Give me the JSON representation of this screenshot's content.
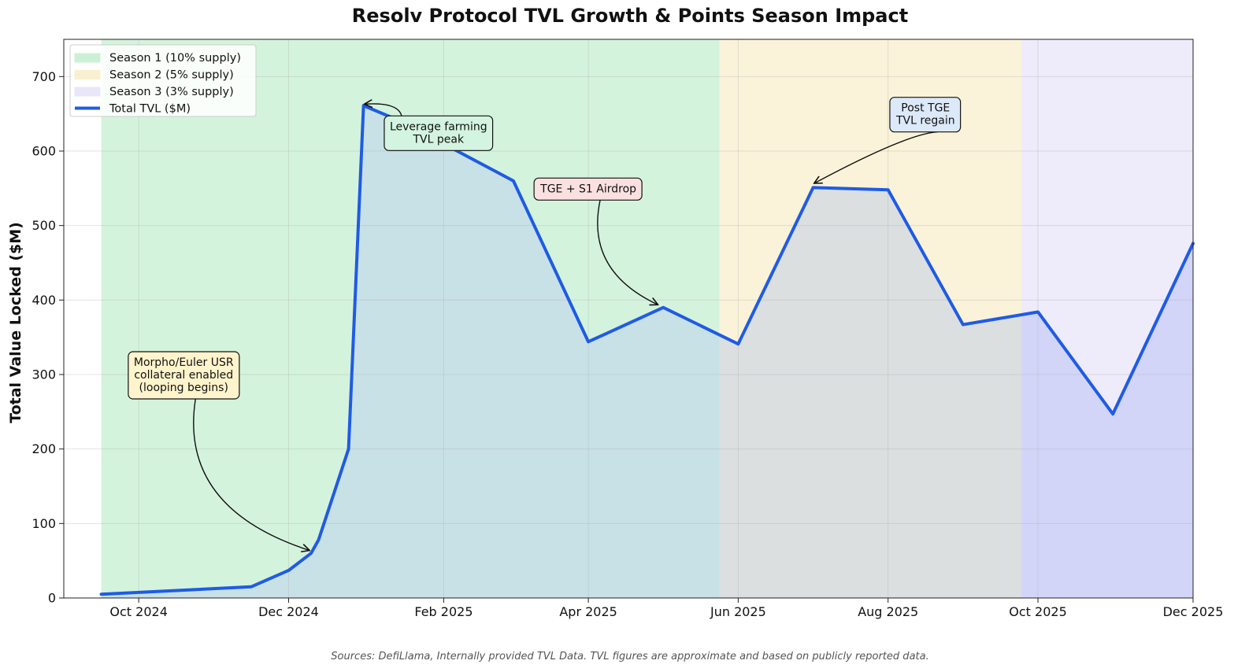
{
  "chart_data": {
    "type": "line",
    "title": "Resolv Protocol TVL Growth & Points Season Impact",
    "xlabel": "",
    "ylabel": "Total Value Locked ($M)",
    "ylim": [
      0,
      750
    ],
    "yticks": [
      0,
      100,
      200,
      300,
      400,
      500,
      600,
      700
    ],
    "xlim": [
      -0.5,
      14.57
    ],
    "xticks": [
      {
        "v": 0.5,
        "label": "Oct 2024"
      },
      {
        "v": 2.5,
        "label": "Dec 2024"
      },
      {
        "v": 4.57,
        "label": "Feb 2025"
      },
      {
        "v": 6.5,
        "label": "Apr 2025"
      },
      {
        "v": 8.5,
        "label": "Jun 2025"
      },
      {
        "v": 10.5,
        "label": "Aug 2025"
      },
      {
        "v": 12.5,
        "label": "Oct 2025"
      },
      {
        "v": 14.57,
        "label": "Dec 2025"
      }
    ],
    "grid": true,
    "series": [
      {
        "name": "Total TVL ($M)",
        "color": "#1f5be5",
        "x": [
          0,
          2,
          2.5,
          2.8,
          2.9,
          3.3,
          3.5,
          4.0,
          5.5,
          6.5,
          7.5,
          8.5,
          9.5,
          10.5,
          11.5,
          12.5,
          13.5,
          14.57
        ],
        "values": [
          5,
          15,
          37,
          60,
          78,
          200,
          661,
          640,
          560,
          344,
          390,
          341,
          551,
          548,
          367,
          384,
          247,
          476
        ]
      }
    ],
    "seasons": [
      {
        "name": "Season 1 (10% supply)",
        "start": 0,
        "end": 8.25,
        "color": "#c6efd2",
        "fill_under": "#c7dfe6"
      },
      {
        "name": "Season 2 (5% supply)",
        "start": 8.25,
        "end": 12.28,
        "color": "#f8efcc",
        "fill_under": "#d9dde0"
      },
      {
        "name": "Season 3 (3% supply)",
        "start": 12.28,
        "end": 14.57,
        "color": "#e8e4f9",
        "fill_under": "#d0d4f8"
      }
    ],
    "legend_position": "top-left",
    "annotations": [
      {
        "id": "morpho",
        "lines": [
          "Morpho/Euler USR",
          "collateral enabled",
          "(looping begins)"
        ],
        "box_color": "#fff4cc",
        "target": [
          2.75,
          62
        ],
        "text_at": [
          1.1,
          300
        ]
      },
      {
        "id": "leverage",
        "lines": [
          "Leverage farming",
          "TVL peak"
        ],
        "box_color": "#d3f4e0",
        "target": [
          3.5,
          661
        ],
        "text_at": [
          4.5,
          625
        ]
      },
      {
        "id": "tge",
        "lines": [
          "TGE + S1 Airdrop"
        ],
        "box_color": "#fbe0e0",
        "target": [
          7.4,
          392
        ],
        "text_at": [
          6.5,
          550
        ]
      },
      {
        "id": "posttge",
        "lines": [
          "Post TGE",
          "TVL regain"
        ],
        "box_color": "#dce9f9",
        "target": [
          9.5,
          555
        ],
        "text_at": [
          11.0,
          650
        ]
      }
    ],
    "source_note": "Sources: DefiLlama, Internally provided TVL Data. TVL figures are approximate and based on publicly reported data."
  }
}
